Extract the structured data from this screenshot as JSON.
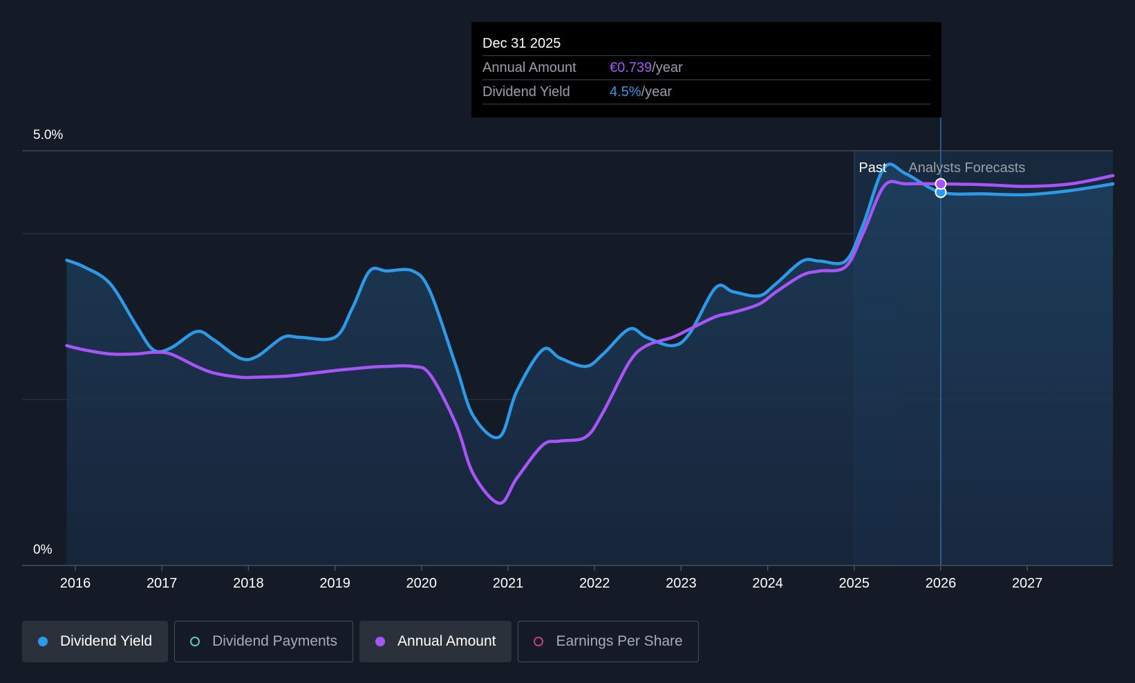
{
  "colors": {
    "background": "#151b26",
    "dividend_yield": "#2d9ae8",
    "annual_amount": "#a855f7",
    "dividend_payments": "#5cc9c0",
    "earnings_per_share": "#c0457a"
  },
  "tooltip": {
    "date": "Dec 31 2025",
    "annual_amount_label": "Annual Amount",
    "annual_amount_value": "€0.739",
    "annual_amount_unit": "/year",
    "dividend_yield_label": "Dividend Yield",
    "dividend_yield_value": "4.5%",
    "dividend_yield_unit": "/year"
  },
  "regions": {
    "past_label": "Past",
    "forecast_label": "Analysts Forecasts"
  },
  "legend": [
    {
      "label": "Dividend Yield",
      "active": true,
      "marker": "filled",
      "color": "#2d9ae8"
    },
    {
      "label": "Dividend Payments",
      "active": false,
      "marker": "hollow",
      "color": "#5cc9c0"
    },
    {
      "label": "Annual Amount",
      "active": true,
      "marker": "filled",
      "color": "#a855f7"
    },
    {
      "label": "Earnings Per Share",
      "active": false,
      "marker": "hollow",
      "color": "#c0457a"
    }
  ],
  "chart_data": {
    "type": "line",
    "x_ticks": [
      "2016",
      "2017",
      "2018",
      "2019",
      "2020",
      "2021",
      "2022",
      "2023",
      "2024",
      "2025",
      "2026",
      "2027"
    ],
    "y_tick_labels": [
      "5.0%",
      "0%"
    ],
    "ylim": [
      0,
      5.0
    ],
    "xlim": [
      2015.5,
      2027.99
    ],
    "grid": true,
    "past_end": 2025.0,
    "forecast_start": 2025.5,
    "highlight_x": 2026.0,
    "series": [
      {
        "name": "Dividend Yield",
        "unit": "%",
        "points": [
          [
            2015.9,
            3.68
          ],
          [
            2016.1,
            3.6
          ],
          [
            2016.4,
            3.4
          ],
          [
            2016.7,
            2.9
          ],
          [
            2016.9,
            2.6
          ],
          [
            2017.1,
            2.62
          ],
          [
            2017.4,
            2.82
          ],
          [
            2017.6,
            2.72
          ],
          [
            2017.9,
            2.5
          ],
          [
            2018.1,
            2.52
          ],
          [
            2018.4,
            2.75
          ],
          [
            2018.6,
            2.75
          ],
          [
            2019.0,
            2.75
          ],
          [
            2019.2,
            3.1
          ],
          [
            2019.4,
            3.55
          ],
          [
            2019.6,
            3.55
          ],
          [
            2019.9,
            3.55
          ],
          [
            2020.1,
            3.3
          ],
          [
            2020.4,
            2.4
          ],
          [
            2020.6,
            1.8
          ],
          [
            2020.9,
            1.55
          ],
          [
            2021.1,
            2.1
          ],
          [
            2021.4,
            2.6
          ],
          [
            2021.6,
            2.5
          ],
          [
            2021.9,
            2.4
          ],
          [
            2022.1,
            2.55
          ],
          [
            2022.4,
            2.85
          ],
          [
            2022.6,
            2.75
          ],
          [
            2022.9,
            2.65
          ],
          [
            2023.1,
            2.8
          ],
          [
            2023.4,
            3.35
          ],
          [
            2023.6,
            3.3
          ],
          [
            2023.9,
            3.25
          ],
          [
            2024.1,
            3.4
          ],
          [
            2024.4,
            3.67
          ],
          [
            2024.6,
            3.67
          ],
          [
            2024.9,
            3.67
          ],
          [
            2025.1,
            4.1
          ],
          [
            2025.35,
            4.8
          ],
          [
            2025.6,
            4.72
          ],
          [
            2026.0,
            4.5
          ],
          [
            2026.5,
            4.48
          ],
          [
            2027.0,
            4.47
          ],
          [
            2027.5,
            4.52
          ],
          [
            2027.99,
            4.6
          ]
        ]
      },
      {
        "name": "Annual Amount",
        "unit": "%",
        "points": [
          [
            2015.9,
            2.65
          ],
          [
            2016.1,
            2.6
          ],
          [
            2016.4,
            2.55
          ],
          [
            2016.7,
            2.55
          ],
          [
            2016.9,
            2.57
          ],
          [
            2017.1,
            2.55
          ],
          [
            2017.4,
            2.4
          ],
          [
            2017.6,
            2.32
          ],
          [
            2017.9,
            2.27
          ],
          [
            2018.1,
            2.27
          ],
          [
            2018.4,
            2.28
          ],
          [
            2018.6,
            2.3
          ],
          [
            2019.0,
            2.35
          ],
          [
            2019.2,
            2.37
          ],
          [
            2019.4,
            2.39
          ],
          [
            2019.6,
            2.4
          ],
          [
            2019.9,
            2.4
          ],
          [
            2020.1,
            2.3
          ],
          [
            2020.4,
            1.7
          ],
          [
            2020.6,
            1.1
          ],
          [
            2020.9,
            0.75
          ],
          [
            2021.1,
            1.05
          ],
          [
            2021.4,
            1.45
          ],
          [
            2021.6,
            1.5
          ],
          [
            2021.9,
            1.55
          ],
          [
            2022.1,
            1.85
          ],
          [
            2022.4,
            2.45
          ],
          [
            2022.6,
            2.65
          ],
          [
            2022.9,
            2.75
          ],
          [
            2023.1,
            2.85
          ],
          [
            2023.4,
            3.0
          ],
          [
            2023.6,
            3.05
          ],
          [
            2023.9,
            3.15
          ],
          [
            2024.1,
            3.3
          ],
          [
            2024.4,
            3.5
          ],
          [
            2024.6,
            3.55
          ],
          [
            2024.9,
            3.6
          ],
          [
            2025.1,
            4.0
          ],
          [
            2025.35,
            4.58
          ],
          [
            2025.6,
            4.6
          ],
          [
            2026.0,
            4.6
          ],
          [
            2026.5,
            4.59
          ],
          [
            2027.0,
            4.57
          ],
          [
            2027.5,
            4.6
          ],
          [
            2027.99,
            4.7
          ]
        ]
      }
    ]
  }
}
